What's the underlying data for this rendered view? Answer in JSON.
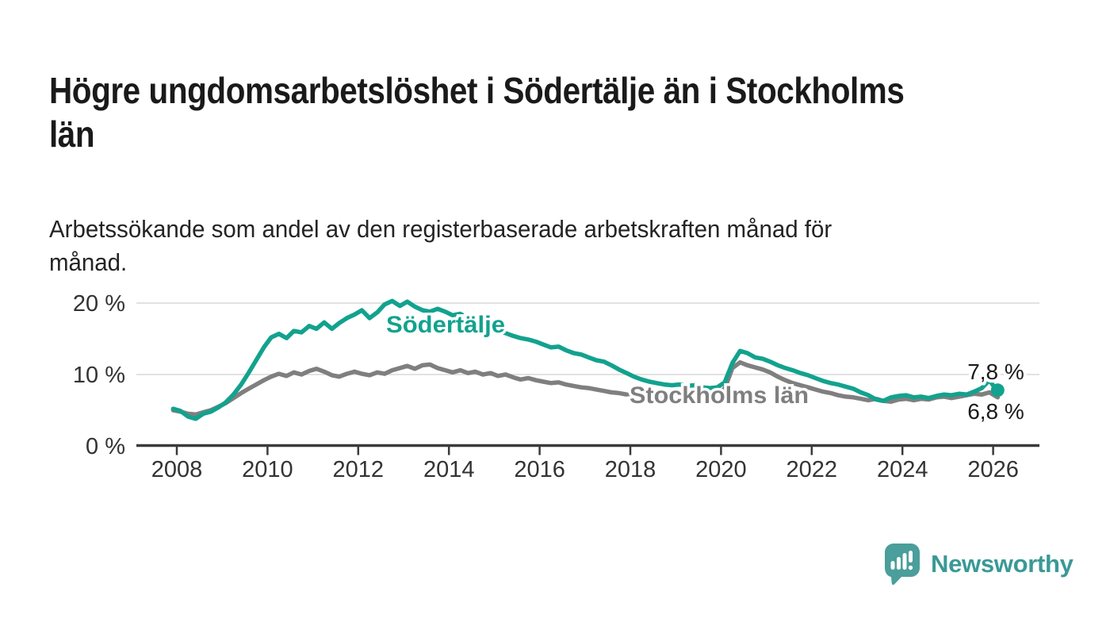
{
  "title": {
    "line1": "Högre ungdomsarbetslöshet i Södertälje än i Stockholms",
    "line2": "län"
  },
  "subtitle": {
    "line1": "Arbetssökande som andel av den registerbaserade arbetskraften månad för",
    "line2": "månad."
  },
  "footer": {
    "brand": "Newsworthy"
  },
  "colors": {
    "accent_teal": "#12a28e",
    "line_gray": "#7f7f7f",
    "axis": "#3a3a3a",
    "grid": "#d9d9d9",
    "text_dark": "#1a1a1a",
    "logo_teal": "#4a9e9b",
    "logo_text": "#3a9996"
  },
  "chart_data": {
    "type": "line",
    "title": "",
    "xlabel": "",
    "ylabel": "",
    "grid": "horizontal",
    "legend_position": "inline-labels",
    "xlim": [
      2007.1,
      2027.0
    ],
    "ylim": [
      0,
      22
    ],
    "y_ticks": [
      {
        "v": 0,
        "label": "0 %"
      },
      {
        "v": 10,
        "label": "10 %"
      },
      {
        "v": 20,
        "label": "20 %"
      }
    ],
    "x_ticks": [
      {
        "v": 2008,
        "label": "2008"
      },
      {
        "v": 2010,
        "label": "2010"
      },
      {
        "v": 2012,
        "label": "2012"
      },
      {
        "v": 2014,
        "label": "2014"
      },
      {
        "v": 2016,
        "label": "2016"
      },
      {
        "v": 2018,
        "label": "2018"
      },
      {
        "v": 2020,
        "label": "2020"
      },
      {
        "v": 2022,
        "label": "2022"
      },
      {
        "v": 2024,
        "label": "2024"
      },
      {
        "v": 2026,
        "label": "2026"
      }
    ],
    "series": [
      {
        "name": "Stockholms län",
        "color": "#7f7f7f",
        "end_label": "6,8 %",
        "end_dot": false,
        "points": [
          [
            2007.92,
            5.0
          ],
          [
            2008.08,
            4.8
          ],
          [
            2008.25,
            4.5
          ],
          [
            2008.42,
            4.4
          ],
          [
            2008.58,
            4.7
          ],
          [
            2008.75,
            5.0
          ],
          [
            2008.92,
            5.5
          ],
          [
            2009.08,
            6.0
          ],
          [
            2009.25,
            6.7
          ],
          [
            2009.42,
            7.4
          ],
          [
            2009.58,
            8.0
          ],
          [
            2009.75,
            8.6
          ],
          [
            2009.92,
            9.2
          ],
          [
            2010.08,
            9.7
          ],
          [
            2010.25,
            10.1
          ],
          [
            2010.42,
            9.8
          ],
          [
            2010.58,
            10.3
          ],
          [
            2010.75,
            10.0
          ],
          [
            2010.92,
            10.5
          ],
          [
            2011.08,
            10.8
          ],
          [
            2011.25,
            10.4
          ],
          [
            2011.42,
            9.9
          ],
          [
            2011.58,
            9.7
          ],
          [
            2011.75,
            10.1
          ],
          [
            2011.92,
            10.4
          ],
          [
            2012.08,
            10.1
          ],
          [
            2012.25,
            9.9
          ],
          [
            2012.42,
            10.3
          ],
          [
            2012.58,
            10.1
          ],
          [
            2012.75,
            10.6
          ],
          [
            2012.92,
            10.9
          ],
          [
            2013.08,
            11.2
          ],
          [
            2013.25,
            10.8
          ],
          [
            2013.42,
            11.3
          ],
          [
            2013.58,
            11.4
          ],
          [
            2013.75,
            10.9
          ],
          [
            2013.92,
            10.6
          ],
          [
            2014.08,
            10.3
          ],
          [
            2014.25,
            10.6
          ],
          [
            2014.42,
            10.2
          ],
          [
            2014.58,
            10.4
          ],
          [
            2014.75,
            10.0
          ],
          [
            2014.92,
            10.2
          ],
          [
            2015.08,
            9.8
          ],
          [
            2015.25,
            10.0
          ],
          [
            2015.42,
            9.6
          ],
          [
            2015.58,
            9.3
          ],
          [
            2015.75,
            9.5
          ],
          [
            2015.92,
            9.2
          ],
          [
            2016.08,
            9.0
          ],
          [
            2016.25,
            8.8
          ],
          [
            2016.42,
            8.9
          ],
          [
            2016.58,
            8.6
          ],
          [
            2016.75,
            8.4
          ],
          [
            2016.92,
            8.2
          ],
          [
            2017.08,
            8.1
          ],
          [
            2017.25,
            7.9
          ],
          [
            2017.42,
            7.7
          ],
          [
            2017.58,
            7.5
          ],
          [
            2017.75,
            7.4
          ],
          [
            2017.92,
            7.2
          ],
          [
            2018.08,
            7.1
          ],
          [
            2018.25,
            6.9
          ],
          [
            2018.42,
            7.0
          ],
          [
            2018.58,
            6.8
          ],
          [
            2018.75,
            7.0
          ],
          [
            2018.92,
            7.1
          ],
          [
            2019.08,
            7.0
          ],
          [
            2019.25,
            7.2
          ],
          [
            2019.42,
            7.1
          ],
          [
            2019.58,
            7.3
          ],
          [
            2019.75,
            7.2
          ],
          [
            2019.92,
            7.4
          ],
          [
            2020.08,
            8.0
          ],
          [
            2020.25,
            10.9
          ],
          [
            2020.42,
            11.7
          ],
          [
            2020.58,
            11.3
          ],
          [
            2020.75,
            11.0
          ],
          [
            2020.92,
            10.7
          ],
          [
            2021.08,
            10.3
          ],
          [
            2021.25,
            9.7
          ],
          [
            2021.42,
            9.2
          ],
          [
            2021.58,
            8.8
          ],
          [
            2021.75,
            8.5
          ],
          [
            2021.92,
            8.2
          ],
          [
            2022.08,
            7.9
          ],
          [
            2022.25,
            7.6
          ],
          [
            2022.42,
            7.4
          ],
          [
            2022.58,
            7.1
          ],
          [
            2022.75,
            6.9
          ],
          [
            2022.92,
            6.8
          ],
          [
            2023.08,
            6.6
          ],
          [
            2023.25,
            6.4
          ],
          [
            2023.42,
            6.6
          ],
          [
            2023.58,
            6.3
          ],
          [
            2023.75,
            6.2
          ],
          [
            2023.92,
            6.5
          ],
          [
            2024.08,
            6.6
          ],
          [
            2024.25,
            6.4
          ],
          [
            2024.42,
            6.6
          ],
          [
            2024.58,
            6.5
          ],
          [
            2024.75,
            6.8
          ],
          [
            2024.92,
            6.9
          ],
          [
            2025.08,
            6.7
          ],
          [
            2025.25,
            6.9
          ],
          [
            2025.42,
            7.1
          ],
          [
            2025.58,
            7.3
          ],
          [
            2025.75,
            7.2
          ],
          [
            2025.92,
            7.5
          ],
          [
            2026.1,
            6.8
          ]
        ]
      },
      {
        "name": "Södertälje",
        "color": "#12a28e",
        "end_label": "7,8 %",
        "end_dot": true,
        "points": [
          [
            2007.92,
            5.2
          ],
          [
            2008.08,
            4.9
          ],
          [
            2008.25,
            4.1
          ],
          [
            2008.42,
            3.8
          ],
          [
            2008.58,
            4.5
          ],
          [
            2008.75,
            4.8
          ],
          [
            2008.92,
            5.4
          ],
          [
            2009.08,
            6.1
          ],
          [
            2009.25,
            7.2
          ],
          [
            2009.42,
            8.6
          ],
          [
            2009.58,
            10.2
          ],
          [
            2009.75,
            12.0
          ],
          [
            2009.92,
            13.8
          ],
          [
            2010.08,
            15.2
          ],
          [
            2010.25,
            15.7
          ],
          [
            2010.42,
            15.1
          ],
          [
            2010.58,
            16.1
          ],
          [
            2010.75,
            15.9
          ],
          [
            2010.92,
            16.8
          ],
          [
            2011.08,
            16.4
          ],
          [
            2011.25,
            17.3
          ],
          [
            2011.42,
            16.4
          ],
          [
            2011.58,
            17.2
          ],
          [
            2011.75,
            17.9
          ],
          [
            2011.92,
            18.4
          ],
          [
            2012.08,
            19.0
          ],
          [
            2012.25,
            17.9
          ],
          [
            2012.42,
            18.7
          ],
          [
            2012.58,
            19.8
          ],
          [
            2012.75,
            20.3
          ],
          [
            2012.92,
            19.6
          ],
          [
            2013.08,
            20.2
          ],
          [
            2013.25,
            19.5
          ],
          [
            2013.42,
            19.0
          ],
          [
            2013.58,
            18.8
          ],
          [
            2013.75,
            19.2
          ],
          [
            2013.92,
            18.8
          ],
          [
            2014.08,
            18.3
          ],
          [
            2014.25,
            18.5
          ],
          [
            2014.42,
            17.9
          ],
          [
            2014.58,
            17.4
          ],
          [
            2014.75,
            17.1
          ],
          [
            2014.92,
            16.6
          ],
          [
            2015.08,
            16.1
          ],
          [
            2015.25,
            15.8
          ],
          [
            2015.42,
            15.4
          ],
          [
            2015.58,
            15.1
          ],
          [
            2015.75,
            14.9
          ],
          [
            2015.92,
            14.6
          ],
          [
            2016.08,
            14.2
          ],
          [
            2016.25,
            13.8
          ],
          [
            2016.42,
            13.9
          ],
          [
            2016.58,
            13.4
          ],
          [
            2016.75,
            13.0
          ],
          [
            2016.92,
            12.8
          ],
          [
            2017.08,
            12.4
          ],
          [
            2017.25,
            12.0
          ],
          [
            2017.42,
            11.8
          ],
          [
            2017.58,
            11.3
          ],
          [
            2017.75,
            10.7
          ],
          [
            2017.92,
            10.2
          ],
          [
            2018.08,
            9.7
          ],
          [
            2018.25,
            9.3
          ],
          [
            2018.42,
            9.0
          ],
          [
            2018.58,
            8.8
          ],
          [
            2018.75,
            8.6
          ],
          [
            2018.92,
            8.5
          ],
          [
            2019.08,
            8.6
          ],
          [
            2019.25,
            8.4
          ],
          [
            2019.42,
            8.5
          ],
          [
            2019.58,
            8.2
          ],
          [
            2019.75,
            8.1
          ],
          [
            2019.92,
            8.2
          ],
          [
            2020.08,
            8.9
          ],
          [
            2020.25,
            11.6
          ],
          [
            2020.42,
            13.3
          ],
          [
            2020.58,
            13.0
          ],
          [
            2020.75,
            12.4
          ],
          [
            2020.92,
            12.2
          ],
          [
            2021.08,
            11.8
          ],
          [
            2021.25,
            11.3
          ],
          [
            2021.42,
            10.9
          ],
          [
            2021.58,
            10.6
          ],
          [
            2021.75,
            10.2
          ],
          [
            2021.92,
            9.9
          ],
          [
            2022.08,
            9.5
          ],
          [
            2022.25,
            9.1
          ],
          [
            2022.42,
            8.8
          ],
          [
            2022.58,
            8.6
          ],
          [
            2022.75,
            8.3
          ],
          [
            2022.92,
            8.0
          ],
          [
            2023.08,
            7.5
          ],
          [
            2023.25,
            7.1
          ],
          [
            2023.42,
            6.5
          ],
          [
            2023.58,
            6.3
          ],
          [
            2023.75,
            6.8
          ],
          [
            2023.92,
            7.0
          ],
          [
            2024.08,
            7.1
          ],
          [
            2024.25,
            6.8
          ],
          [
            2024.42,
            6.9
          ],
          [
            2024.58,
            6.7
          ],
          [
            2024.75,
            7.0
          ],
          [
            2024.92,
            7.2
          ],
          [
            2025.08,
            7.1
          ],
          [
            2025.25,
            7.3
          ],
          [
            2025.42,
            7.2
          ],
          [
            2025.58,
            7.6
          ],
          [
            2025.75,
            8.1
          ],
          [
            2025.92,
            9.2
          ],
          [
            2026.02,
            8.3
          ],
          [
            2026.1,
            7.8
          ]
        ]
      }
    ]
  }
}
